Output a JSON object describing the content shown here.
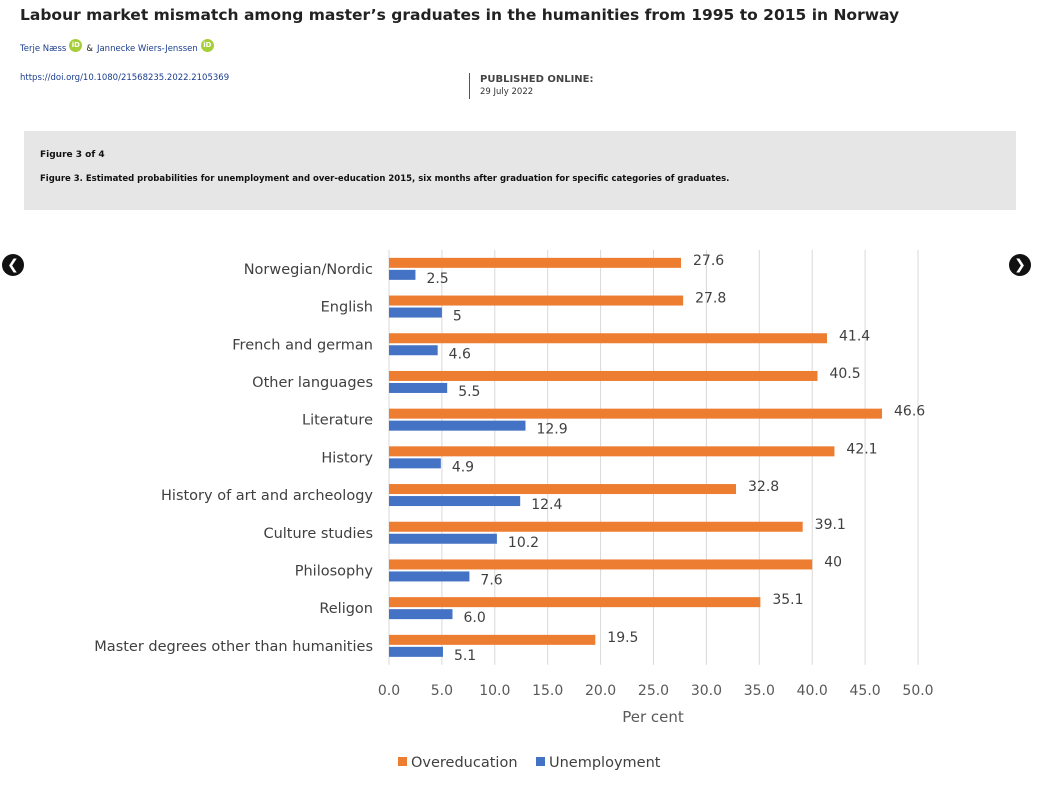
{
  "article": {
    "title": "Labour market mismatch among master’s graduates in the humanities from 1995 to 2015 in Norway",
    "authors": [
      "Terje Næss",
      "Jannecke Wiers-Jenssen"
    ],
    "author_separator": "&",
    "orcid_badge": "iD",
    "doi": "https://doi.org/10.1080/21568235.2022.2105369",
    "published_label": "PUBLISHED ONLINE:",
    "published_date": "29 July 2022"
  },
  "figure": {
    "count_label": "Figure 3 of 4",
    "caption": "Figure 3. Estimated probabilities for unemployment and over-education 2015, six months after graduation for specific categories of graduates."
  },
  "navigation": {
    "prev_icon": "chevron-left-icon",
    "next_icon": "chevron-right-icon"
  },
  "chart_data": {
    "type": "bar",
    "orientation": "horizontal",
    "categories": [
      "Norwegian/Nordic",
      "English",
      "French and german",
      "Other languages",
      "Literature",
      "History",
      "History of art and archeology",
      "Culture studies",
      "Philosophy",
      "Religon",
      "Master degrees other than humanities"
    ],
    "series": [
      {
        "name": "Overeducation",
        "color": "#ED7D31",
        "values": [
          27.6,
          27.8,
          41.4,
          40.5,
          46.6,
          42.1,
          32.8,
          39.1,
          40,
          35.1,
          19.5
        ],
        "labels": [
          "27.6",
          "27.8",
          "41.4",
          "40.5",
          "46.6",
          "42.1",
          "32.8",
          "39.1",
          "40",
          "35.1",
          "19.5"
        ]
      },
      {
        "name": "Unemployment",
        "color": "#4472C4",
        "values": [
          2.5,
          5,
          4.6,
          5.5,
          12.9,
          4.9,
          12.4,
          10.2,
          7.6,
          6.0,
          5.1
        ],
        "labels": [
          "2.5",
          "5",
          "4.6",
          "5.5",
          "12.9",
          "4.9",
          "12.4",
          "10.2",
          "7.6",
          "6.0",
          "5.1"
        ]
      }
    ],
    "xticks": [
      "0.0",
      "5.0",
      "10.0",
      "15.0",
      "20.0",
      "25.0",
      "30.0",
      "35.0",
      "40.0",
      "45.0",
      "50.0"
    ],
    "xlim": [
      0,
      50
    ],
    "xlabel": "Per cent",
    "ylabel": "",
    "grid": true,
    "legend_position": "bottom"
  }
}
